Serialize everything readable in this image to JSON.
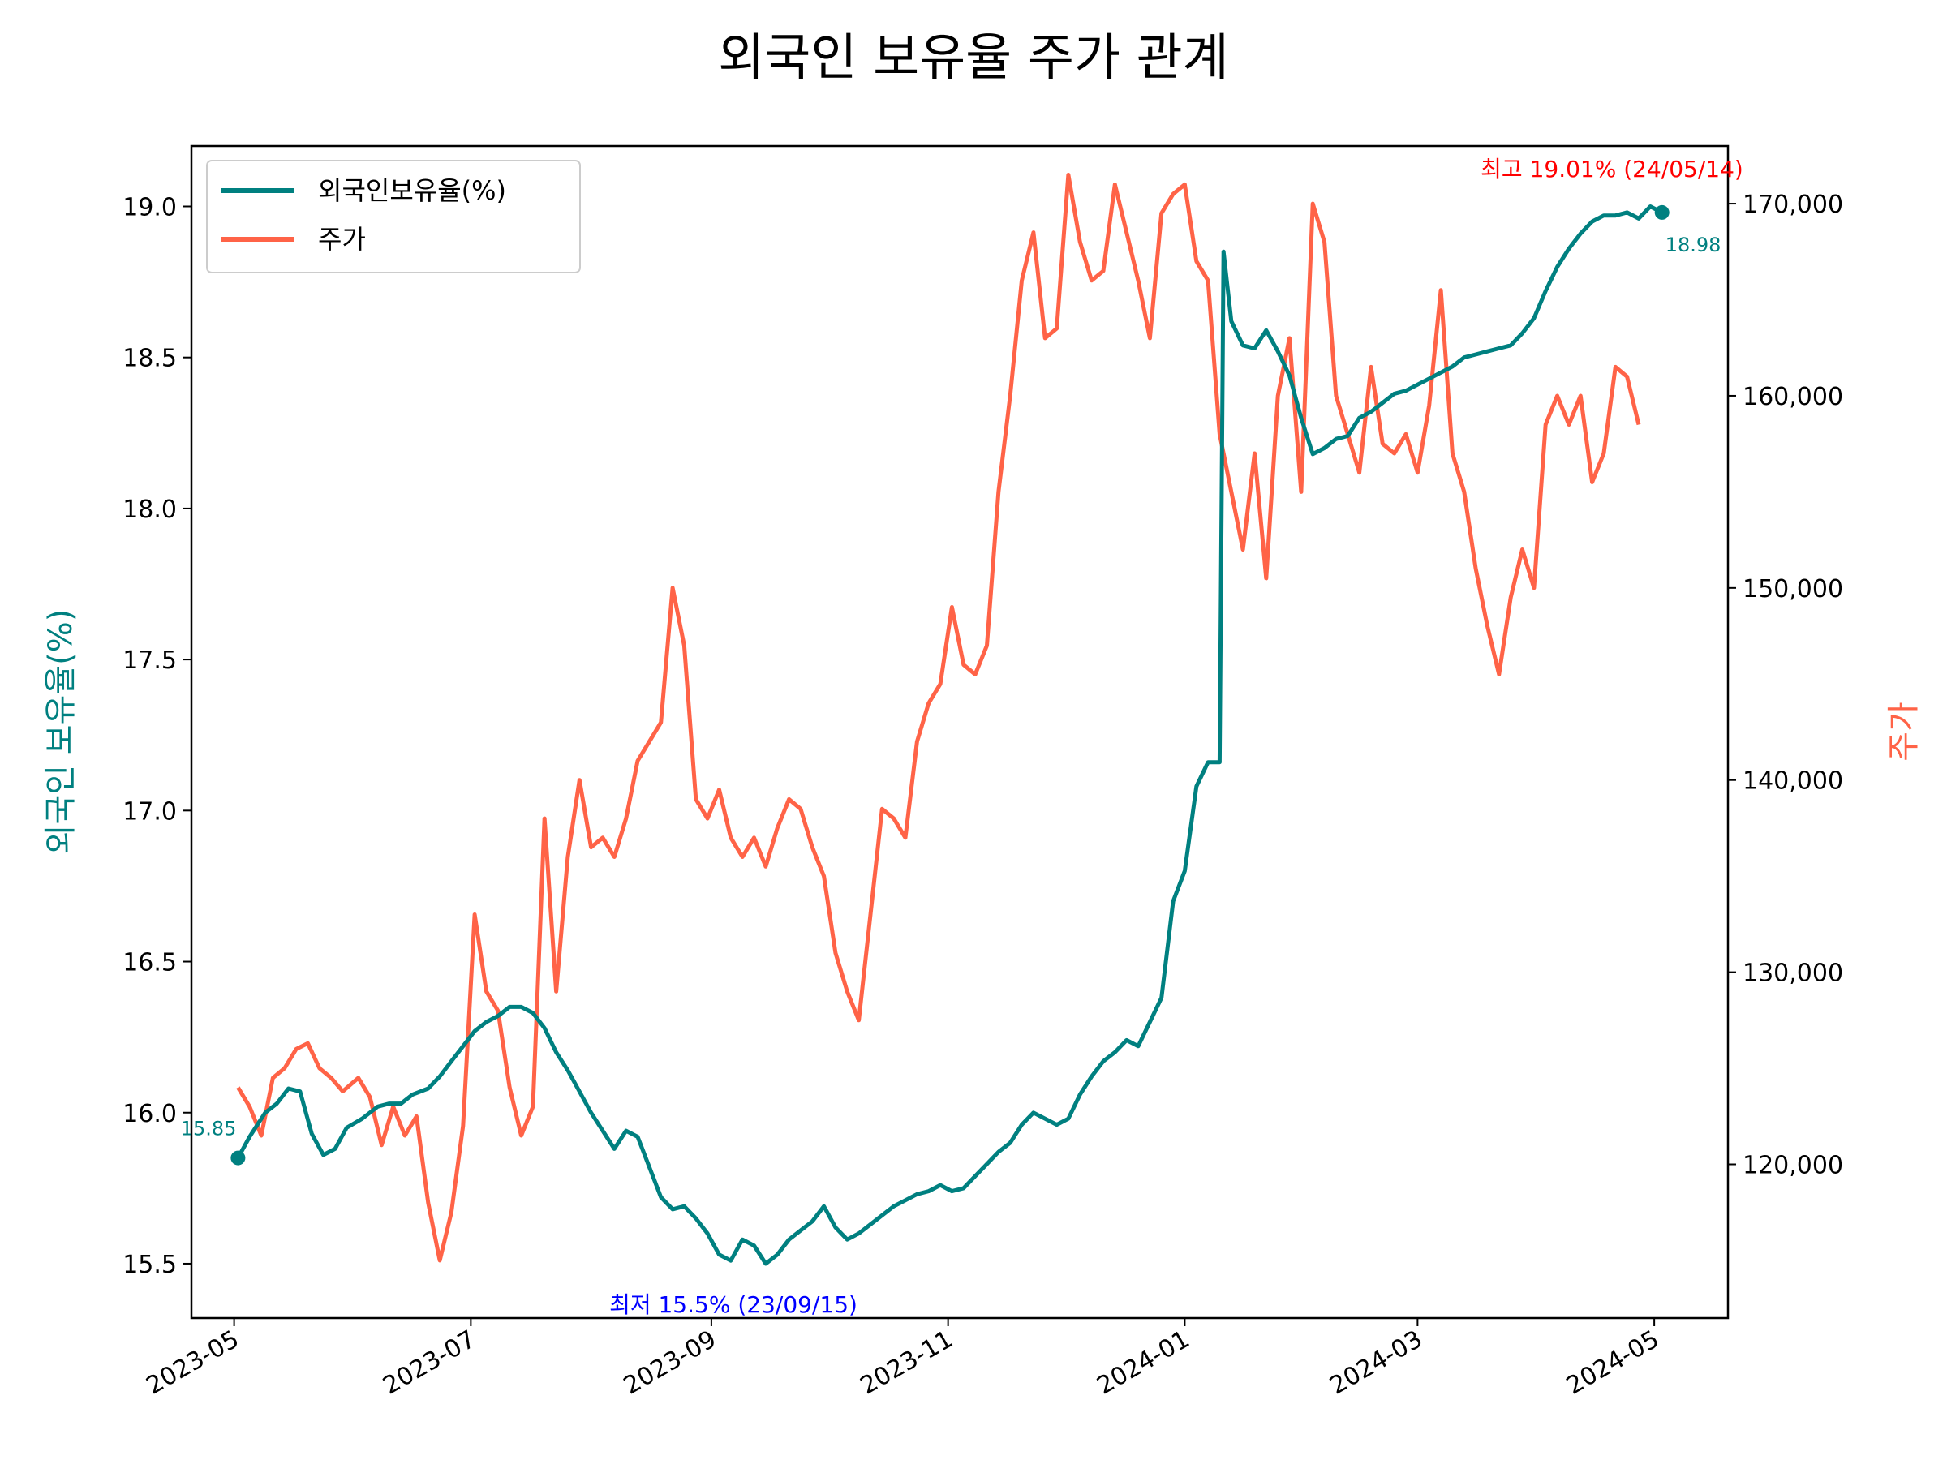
{
  "chart_data": {
    "type": "line",
    "title": "외국인 보유율 주가 관계",
    "ylabel_left": "외국인 보유율(%)",
    "ylabel_right": "주가",
    "x_ticks": [
      "2023-05",
      "2023-07",
      "2023-09",
      "2023-11",
      "2024-01",
      "2024-03",
      "2024-05"
    ],
    "xlim": [
      "2023-04-20",
      "2024-05-20"
    ],
    "y_left_lim": [
      15.32,
      19.2
    ],
    "y_left_ticks": [
      "15.5",
      "16.0",
      "16.5",
      "17.0",
      "17.5",
      "18.0",
      "18.5",
      "19.0"
    ],
    "y_right_lim": [
      112000,
      173000
    ],
    "y_right_ticks": [
      "120,000",
      "130,000",
      "140,000",
      "150,000",
      "160,000",
      "170,000"
    ],
    "grid": false,
    "legend_position": "upper-left",
    "colors": {
      "ownership": "#008080",
      "price": "#ff6347",
      "max_annotation": "#ff0000",
      "min_annotation": "#0000ff",
      "axis": "#000000"
    },
    "series": [
      {
        "name": "외국인보유율(%)",
        "axis": "left",
        "color": "#008080",
        "points": [
          [
            "2023-05-02",
            15.85
          ],
          [
            "2023-05-05",
            15.92
          ],
          [
            "2023-05-09",
            16.0
          ],
          [
            "2023-05-12",
            16.03
          ],
          [
            "2023-05-15",
            16.08
          ],
          [
            "2023-05-18",
            16.07
          ],
          [
            "2023-05-21",
            15.93
          ],
          [
            "2023-05-24",
            15.86
          ],
          [
            "2023-05-27",
            15.88
          ],
          [
            "2023-05-30",
            15.95
          ],
          [
            "2023-06-03",
            15.98
          ],
          [
            "2023-06-07",
            16.02
          ],
          [
            "2023-06-10",
            16.03
          ],
          [
            "2023-06-13",
            16.03
          ],
          [
            "2023-06-16",
            16.06
          ],
          [
            "2023-06-20",
            16.08
          ],
          [
            "2023-06-23",
            16.12
          ],
          [
            "2023-06-26",
            16.17
          ],
          [
            "2023-06-29",
            16.22
          ],
          [
            "2023-07-02",
            16.27
          ],
          [
            "2023-07-05",
            16.3
          ],
          [
            "2023-07-08",
            16.32
          ],
          [
            "2023-07-11",
            16.35
          ],
          [
            "2023-07-14",
            16.35
          ],
          [
            "2023-07-17",
            16.33
          ],
          [
            "2023-07-20",
            16.28
          ],
          [
            "2023-07-23",
            16.2
          ],
          [
            "2023-07-26",
            16.14
          ],
          [
            "2023-07-29",
            16.07
          ],
          [
            "2023-08-01",
            16.0
          ],
          [
            "2023-08-04",
            15.94
          ],
          [
            "2023-08-07",
            15.88
          ],
          [
            "2023-08-10",
            15.94
          ],
          [
            "2023-08-13",
            15.92
          ],
          [
            "2023-08-16",
            15.82
          ],
          [
            "2023-08-19",
            15.72
          ],
          [
            "2023-08-22",
            15.68
          ],
          [
            "2023-08-25",
            15.69
          ],
          [
            "2023-08-28",
            15.65
          ],
          [
            "2023-08-31",
            15.6
          ],
          [
            "2023-09-03",
            15.53
          ],
          [
            "2023-09-06",
            15.51
          ],
          [
            "2023-09-09",
            15.58
          ],
          [
            "2023-09-12",
            15.56
          ],
          [
            "2023-09-15",
            15.5
          ],
          [
            "2023-09-18",
            15.53
          ],
          [
            "2023-09-21",
            15.58
          ],
          [
            "2023-09-24",
            15.61
          ],
          [
            "2023-09-27",
            15.64
          ],
          [
            "2023-09-30",
            15.69
          ],
          [
            "2023-10-03",
            15.62
          ],
          [
            "2023-10-06",
            15.58
          ],
          [
            "2023-10-09",
            15.6
          ],
          [
            "2023-10-12",
            15.63
          ],
          [
            "2023-10-15",
            15.66
          ],
          [
            "2023-10-18",
            15.69
          ],
          [
            "2023-10-21",
            15.71
          ],
          [
            "2023-10-24",
            15.73
          ],
          [
            "2023-10-27",
            15.74
          ],
          [
            "2023-10-30",
            15.76
          ],
          [
            "2023-11-02",
            15.74
          ],
          [
            "2023-11-05",
            15.75
          ],
          [
            "2023-11-08",
            15.79
          ],
          [
            "2023-11-11",
            15.83
          ],
          [
            "2023-11-14",
            15.87
          ],
          [
            "2023-11-17",
            15.9
          ],
          [
            "2023-11-20",
            15.96
          ],
          [
            "2023-11-23",
            16.0
          ],
          [
            "2023-11-26",
            15.98
          ],
          [
            "2023-11-29",
            15.96
          ],
          [
            "2023-12-02",
            15.98
          ],
          [
            "2023-12-05",
            16.06
          ],
          [
            "2023-12-08",
            16.12
          ],
          [
            "2023-12-11",
            16.17
          ],
          [
            "2023-12-14",
            16.2
          ],
          [
            "2023-12-17",
            16.24
          ],
          [
            "2023-12-20",
            16.22
          ],
          [
            "2023-12-23",
            16.3
          ],
          [
            "2023-12-26",
            16.38
          ],
          [
            "2023-12-29",
            16.7
          ],
          [
            "2024-01-01",
            16.8
          ],
          [
            "2024-01-04",
            17.08
          ],
          [
            "2024-01-07",
            17.16
          ],
          [
            "2024-01-10",
            17.16
          ],
          [
            "2024-01-11",
            18.85
          ],
          [
            "2024-01-13",
            18.62
          ],
          [
            "2024-01-16",
            18.54
          ],
          [
            "2024-01-19",
            18.53
          ],
          [
            "2024-01-22",
            18.59
          ],
          [
            "2024-01-25",
            18.52
          ],
          [
            "2024-01-28",
            18.44
          ],
          [
            "2024-01-31",
            18.3
          ],
          [
            "2024-02-03",
            18.18
          ],
          [
            "2024-02-06",
            18.2
          ],
          [
            "2024-02-09",
            18.23
          ],
          [
            "2024-02-12",
            18.24
          ],
          [
            "2024-02-15",
            18.3
          ],
          [
            "2024-02-18",
            18.32
          ],
          [
            "2024-02-21",
            18.35
          ],
          [
            "2024-02-24",
            18.38
          ],
          [
            "2024-02-27",
            18.39
          ],
          [
            "2024-03-01",
            18.41
          ],
          [
            "2024-03-04",
            18.43
          ],
          [
            "2024-03-07",
            18.45
          ],
          [
            "2024-03-10",
            18.47
          ],
          [
            "2024-03-13",
            18.5
          ],
          [
            "2024-03-16",
            18.51
          ],
          [
            "2024-03-19",
            18.52
          ],
          [
            "2024-03-22",
            18.53
          ],
          [
            "2024-03-25",
            18.54
          ],
          [
            "2024-03-28",
            18.58
          ],
          [
            "2024-03-31",
            18.63
          ],
          [
            "2024-04-03",
            18.72
          ],
          [
            "2024-04-06",
            18.8
          ],
          [
            "2024-04-09",
            18.86
          ],
          [
            "2024-04-12",
            18.91
          ],
          [
            "2024-04-15",
            18.95
          ],
          [
            "2024-04-18",
            18.97
          ],
          [
            "2024-04-21",
            18.97
          ],
          [
            "2024-04-24",
            18.98
          ],
          [
            "2024-04-27",
            18.96
          ],
          [
            "2024-04-30",
            19.0
          ],
          [
            "2024-05-03",
            18.98
          ]
        ]
      },
      {
        "name": "주가",
        "axis": "right",
        "color": "#ff6347",
        "points": [
          [
            "2023-05-02",
            124000
          ],
          [
            "2023-05-05",
            123000
          ],
          [
            "2023-05-08",
            121500
          ],
          [
            "2023-05-11",
            124500
          ],
          [
            "2023-05-14",
            125000
          ],
          [
            "2023-05-17",
            126000
          ],
          [
            "2023-05-20",
            126300
          ],
          [
            "2023-05-23",
            125000
          ],
          [
            "2023-05-26",
            124500
          ],
          [
            "2023-05-29",
            123800
          ],
          [
            "2023-06-02",
            124500
          ],
          [
            "2023-06-05",
            123500
          ],
          [
            "2023-06-08",
            121000
          ],
          [
            "2023-06-11",
            123000
          ],
          [
            "2023-06-14",
            121500
          ],
          [
            "2023-06-17",
            122500
          ],
          [
            "2023-06-20",
            118000
          ],
          [
            "2023-06-23",
            115000
          ],
          [
            "2023-06-26",
            117500
          ],
          [
            "2023-06-29",
            122000
          ],
          [
            "2023-07-02",
            133000
          ],
          [
            "2023-07-05",
            129000
          ],
          [
            "2023-07-08",
            128000
          ],
          [
            "2023-07-11",
            124000
          ],
          [
            "2023-07-14",
            121500
          ],
          [
            "2023-07-17",
            123000
          ],
          [
            "2023-07-20",
            138000
          ],
          [
            "2023-07-23",
            129000
          ],
          [
            "2023-07-26",
            136000
          ],
          [
            "2023-07-29",
            140000
          ],
          [
            "2023-08-01",
            136500
          ],
          [
            "2023-08-04",
            137000
          ],
          [
            "2023-08-07",
            136000
          ],
          [
            "2023-08-10",
            138000
          ],
          [
            "2023-08-13",
            141000
          ],
          [
            "2023-08-16",
            142000
          ],
          [
            "2023-08-19",
            143000
          ],
          [
            "2023-08-22",
            150000
          ],
          [
            "2023-08-25",
            147000
          ],
          [
            "2023-08-28",
            139000
          ],
          [
            "2023-08-31",
            138000
          ],
          [
            "2023-09-03",
            139500
          ],
          [
            "2023-09-06",
            137000
          ],
          [
            "2023-09-09",
            136000
          ],
          [
            "2023-09-12",
            137000
          ],
          [
            "2023-09-15",
            135500
          ],
          [
            "2023-09-18",
            137500
          ],
          [
            "2023-09-21",
            139000
          ],
          [
            "2023-09-24",
            138500
          ],
          [
            "2023-09-27",
            136500
          ],
          [
            "2023-09-30",
            135000
          ],
          [
            "2023-10-03",
            131000
          ],
          [
            "2023-10-06",
            129000
          ],
          [
            "2023-10-09",
            127500
          ],
          [
            "2023-10-12",
            133000
          ],
          [
            "2023-10-15",
            138500
          ],
          [
            "2023-10-18",
            138000
          ],
          [
            "2023-10-21",
            137000
          ],
          [
            "2023-10-24",
            142000
          ],
          [
            "2023-10-27",
            144000
          ],
          [
            "2023-10-30",
            145000
          ],
          [
            "2023-11-02",
            149000
          ],
          [
            "2023-11-05",
            146000
          ],
          [
            "2023-11-08",
            145500
          ],
          [
            "2023-11-11",
            147000
          ],
          [
            "2023-11-14",
            155000
          ],
          [
            "2023-11-17",
            160000
          ],
          [
            "2023-11-20",
            166000
          ],
          [
            "2023-11-23",
            168500
          ],
          [
            "2023-11-26",
            163000
          ],
          [
            "2023-11-29",
            163500
          ],
          [
            "2023-12-02",
            171500
          ],
          [
            "2023-12-05",
            168000
          ],
          [
            "2023-12-08",
            166000
          ],
          [
            "2023-12-11",
            166500
          ],
          [
            "2023-12-14",
            171000
          ],
          [
            "2023-12-17",
            168500
          ],
          [
            "2023-12-20",
            166000
          ],
          [
            "2023-12-23",
            163000
          ],
          [
            "2023-12-26",
            169500
          ],
          [
            "2023-12-29",
            170500
          ],
          [
            "2024-01-01",
            171000
          ],
          [
            "2024-01-04",
            167000
          ],
          [
            "2024-01-07",
            166000
          ],
          [
            "2024-01-10",
            158000
          ],
          [
            "2024-01-13",
            155000
          ],
          [
            "2024-01-16",
            152000
          ],
          [
            "2024-01-19",
            157000
          ],
          [
            "2024-01-22",
            150500
          ],
          [
            "2024-01-25",
            160000
          ],
          [
            "2024-01-28",
            163000
          ],
          [
            "2024-01-31",
            155000
          ],
          [
            "2024-02-03",
            170000
          ],
          [
            "2024-02-06",
            168000
          ],
          [
            "2024-02-09",
            160000
          ],
          [
            "2024-02-12",
            158000
          ],
          [
            "2024-02-15",
            156000
          ],
          [
            "2024-02-18",
            161500
          ],
          [
            "2024-02-21",
            157500
          ],
          [
            "2024-02-24",
            157000
          ],
          [
            "2024-02-27",
            158000
          ],
          [
            "2024-03-01",
            156000
          ],
          [
            "2024-03-04",
            159500
          ],
          [
            "2024-03-07",
            165500
          ],
          [
            "2024-03-10",
            157000
          ],
          [
            "2024-03-13",
            155000
          ],
          [
            "2024-03-16",
            151000
          ],
          [
            "2024-03-19",
            148000
          ],
          [
            "2024-03-22",
            145500
          ],
          [
            "2024-03-25",
            149500
          ],
          [
            "2024-03-28",
            152000
          ],
          [
            "2024-03-31",
            150000
          ],
          [
            "2024-04-03",
            158500
          ],
          [
            "2024-04-06",
            160000
          ],
          [
            "2024-04-09",
            158500
          ],
          [
            "2024-04-12",
            160000
          ],
          [
            "2024-04-15",
            155500
          ],
          [
            "2024-04-18",
            157000
          ],
          [
            "2024-04-21",
            161500
          ],
          [
            "2024-04-24",
            161000
          ],
          [
            "2024-04-27",
            158500
          ]
        ]
      }
    ],
    "annotations": {
      "start_label": "15.85",
      "end_label": "18.98",
      "max_label": "최고 19.01% (24/05/14)",
      "min_label": "최저 15.5% (23/09/15)"
    }
  }
}
